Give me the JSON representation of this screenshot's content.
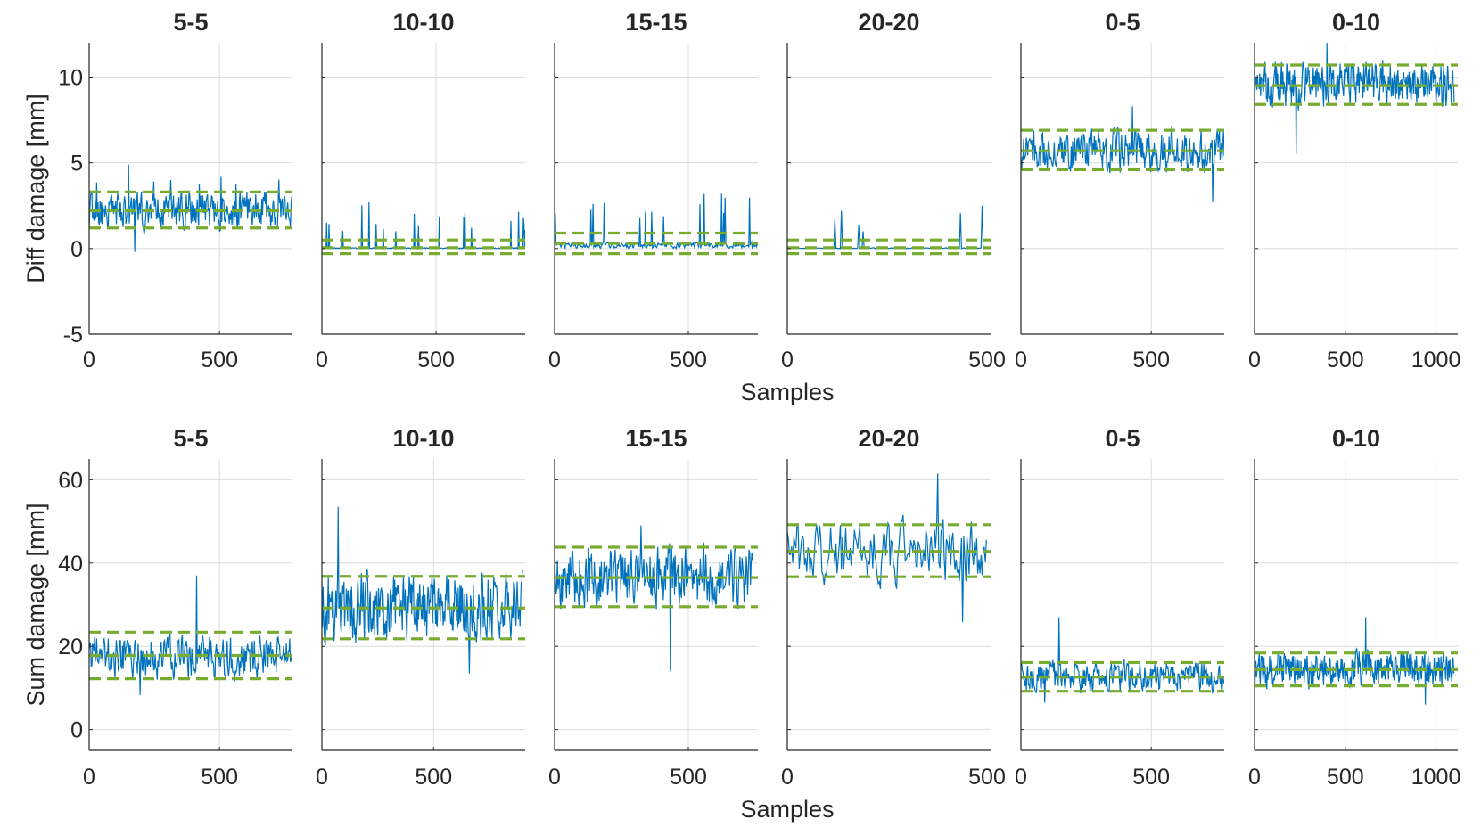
{
  "colors": {
    "series": "#0072BD",
    "band": "#77AC30",
    "grid": "#dcdcdc",
    "axis": "#262626"
  },
  "chart_data": [
    {
      "type": "line",
      "row": "top",
      "ylabel": "Diff damage [mm]",
      "xlabel": "Samples",
      "ylim": [
        -5,
        12
      ],
      "yticks": [
        -5,
        0,
        5,
        10
      ],
      "panels": [
        {
          "title": "5-5",
          "xlim": [
            0,
            780
          ],
          "xticks": [
            0,
            500
          ],
          "n": 780,
          "mean": 2.2,
          "lower": 1.2,
          "upper": 3.3,
          "min": -0.2,
          "max": 4.9,
          "baseline": 2.2,
          "noise": 1.0,
          "spike_rate": 0.01,
          "seed": 11
        },
        {
          "title": "10-10",
          "xlim": [
            0,
            890
          ],
          "xticks": [
            0,
            500
          ],
          "n": 890,
          "mean": 0.05,
          "lower": -0.3,
          "upper": 0.5,
          "min": 0,
          "max": 2.7,
          "baseline": 0.02,
          "noise": 0.03,
          "spike_rate": 0.012,
          "seed": 12
        },
        {
          "title": "15-15",
          "xlim": [
            0,
            760
          ],
          "xticks": [
            0,
            500
          ],
          "n": 760,
          "mean": 0.3,
          "lower": -0.3,
          "upper": 0.9,
          "min": 0,
          "max": 3.2,
          "baseline": 0.2,
          "noise": 0.15,
          "spike_rate": 0.02,
          "seed": 13
        },
        {
          "title": "20-20",
          "xlim": [
            0,
            490
          ],
          "xticks": [
            0,
            500
          ],
          "n": 480,
          "mean": 0.05,
          "lower": -0.3,
          "upper": 0.5,
          "min": 0,
          "max": 2.5,
          "baseline": 0.02,
          "noise": 0.03,
          "spike_rate": 0.01,
          "seed": 14
        },
        {
          "title": "0-5",
          "xlim": [
            0,
            780
          ],
          "xticks": [
            0,
            500
          ],
          "n": 780,
          "mean": 5.7,
          "lower": 4.6,
          "upper": 6.9,
          "min": 2.7,
          "max": 8.3,
          "baseline": 5.7,
          "noise": 1.1,
          "spike_rate": 0.0,
          "seed": 15
        },
        {
          "title": "0-10",
          "xlim": [
            0,
            1120
          ],
          "xticks": [
            0,
            500,
            1000
          ],
          "n": 1100,
          "mean": 9.5,
          "lower": 8.4,
          "upper": 10.7,
          "min": 5.5,
          "max": 12,
          "baseline": 9.6,
          "noise": 1.1,
          "spike_rate": 0.0,
          "seed": 16
        }
      ]
    },
    {
      "type": "line",
      "row": "bottom",
      "ylabel": "Sum damage [mm]",
      "xlabel": "Samples",
      "ylim": [
        -5,
        65
      ],
      "yticks": [
        0,
        20,
        40,
        60
      ],
      "panels": [
        {
          "title": "5-5",
          "xlim": [
            0,
            780
          ],
          "xticks": [
            0,
            500
          ],
          "n": 780,
          "mean": 17.8,
          "lower": 12.2,
          "upper": 23.4,
          "min": 8.3,
          "max": 37,
          "baseline": 17.5,
          "noise": 4.5,
          "spike_rate": 0.0,
          "seed": 21
        },
        {
          "title": "10-10",
          "xlim": [
            0,
            910
          ],
          "xticks": [
            0,
            500
          ],
          "n": 900,
          "mean": 29.2,
          "lower": 21.8,
          "upper": 36.8,
          "min": 13.5,
          "max": 53.5,
          "baseline": 29.5,
          "noise": 7.0,
          "spike_rate": 0.0,
          "seed": 22
        },
        {
          "title": "15-15",
          "xlim": [
            0,
            760
          ],
          "xticks": [
            0,
            500
          ],
          "n": 740,
          "mean": 36.5,
          "lower": 29.5,
          "upper": 43.8,
          "min": 14,
          "max": 49,
          "baseline": 37,
          "noise": 6.5,
          "spike_rate": 0.0,
          "seed": 23
        },
        {
          "title": "20-20",
          "xlim": [
            0,
            490
          ],
          "xticks": [
            0,
            500
          ],
          "n": 480,
          "mean": 42.8,
          "lower": 36.7,
          "upper": 49.2,
          "min": 25.8,
          "max": 61.5,
          "baseline": 42.5,
          "noise": 6.5,
          "spike_rate": 0.0,
          "seed": 24
        },
        {
          "title": "0-5",
          "xlim": [
            0,
            780
          ],
          "xticks": [
            0,
            500
          ],
          "n": 780,
          "mean": 12.6,
          "lower": 9.2,
          "upper": 16.1,
          "min": 6.5,
          "max": 27,
          "baseline": 12.5,
          "noise": 3.2,
          "spike_rate": 0.0,
          "seed": 25
        },
        {
          "title": "0-10",
          "xlim": [
            0,
            1120
          ],
          "xticks": [
            0,
            500,
            1000
          ],
          "n": 1100,
          "mean": 14.4,
          "lower": 10.5,
          "upper": 18.4,
          "min": 6,
          "max": 27,
          "baseline": 14.5,
          "noise": 3.5,
          "spike_rate": 0.0,
          "seed": 26
        }
      ]
    }
  ]
}
